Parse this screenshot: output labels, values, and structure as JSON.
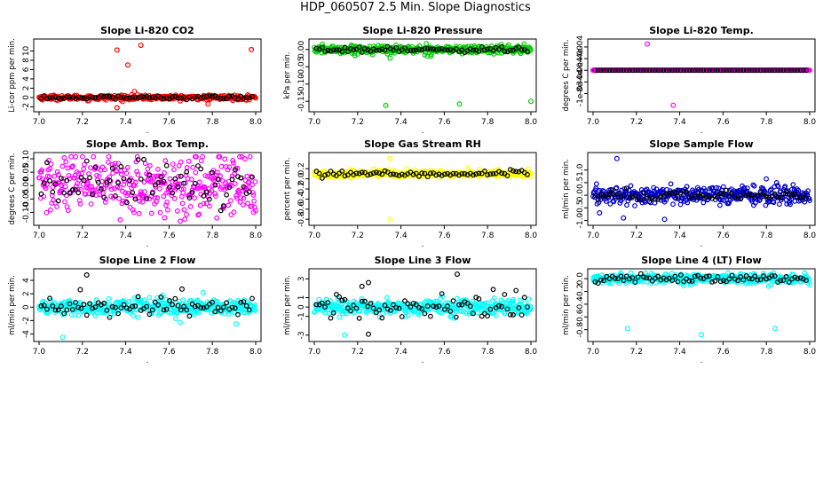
{
  "title": "HDP_060507  2.5 Min. Slope Diagnostics",
  "chart_data": [
    {
      "type": "scatter",
      "title": "Slope Li-820 CO2",
      "ylabel": "Li-cor ppm per min.",
      "color": "#ff0000",
      "xlim": [
        7.0,
        8.0
      ],
      "xticks": [
        "7.0",
        "7.2",
        "7.4",
        "7.6",
        "7.8",
        "8.0"
      ],
      "ylim": [
        -2.3,
        11.8
      ],
      "yticks": [
        {
          "v": -2,
          "label": "-2"
        },
        {
          "v": 0,
          "label": "0"
        },
        {
          "v": 2,
          "label": "2"
        },
        {
          "v": 4,
          "label": "4"
        },
        {
          "v": 6,
          "label": "6"
        },
        {
          "v": 8,
          "label": "8"
        },
        {
          "v": 10,
          "label": "10"
        }
      ],
      "series_params": {
        "center": 0,
        "spread": 0.25,
        "black_spread": 0.2
      },
      "outliers": [
        {
          "x": 7.36,
          "y": 10.2
        },
        {
          "x": 7.47,
          "y": 11.2
        },
        {
          "x": 7.41,
          "y": 7.0
        },
        {
          "x": 7.98,
          "y": 10.3
        },
        {
          "x": 7.44,
          "y": 1.3
        },
        {
          "x": 7.36,
          "y": -2.2
        },
        {
          "x": 7.78,
          "y": -1.4
        }
      ]
    },
    {
      "type": "scatter",
      "title": "Slope Li-820 Pressure",
      "ylabel": "kPa per min.",
      "color": "#00cc00",
      "xlim": [
        7.0,
        8.0
      ],
      "xticks": [
        "7.0",
        "7.2",
        "7.4",
        "7.6",
        "7.8",
        "8.0"
      ],
      "ylim": [
        -0.17,
        0.02
      ],
      "yticks": [
        {
          "v": 0.0,
          "label": "0.00"
        },
        {
          "v": -0.05,
          "label": "-0.05"
        },
        {
          "v": -0.1,
          "label": "-0.10"
        },
        {
          "v": -0.15,
          "label": "-0.15"
        }
      ],
      "series_params": {
        "center": 0.0,
        "spread": 0.006,
        "black_spread": 0.004
      },
      "outliers": [
        {
          "x": 7.33,
          "y": -0.162
        },
        {
          "x": 7.67,
          "y": -0.158
        },
        {
          "x": 8.0,
          "y": -0.15
        },
        {
          "x": 7.35,
          "y": -0.025
        }
      ]
    },
    {
      "type": "scatter",
      "title": "Slope Li-820 Temp.",
      "ylabel": "degrees C per min.",
      "color": "#ff00ff",
      "xlim": [
        7.0,
        8.0
      ],
      "xticks": [
        "7.0",
        "7.2",
        "7.4",
        "7.6",
        "7.8",
        "8.0"
      ],
      "ylim": [
        -0.0017,
        0.00055
      ],
      "yticks": [
        {
          "v": 0.0004,
          "label": "4e-04"
        },
        {
          "v": 0.0,
          "label": "0e+00"
        },
        {
          "v": -0.0004,
          "label": "-4e-04"
        },
        {
          "v": -0.0008,
          "label": "-8e-04"
        },
        {
          "v": -0.0012,
          "label": "-1e-03"
        }
      ],
      "series_params": {
        "center": -0.0004,
        "spread": 0.0,
        "black_spread": 0.0
      },
      "outliers": [
        {
          "x": 7.25,
          "y": 0.0005
        },
        {
          "x": 7.37,
          "y": -0.0016
        },
        {
          "x": 7.0,
          "y": -0.0004
        }
      ]
    },
    {
      "type": "scatter",
      "title": "Slope Amb. Box Temp.",
      "ylabel": "degrees C per min.",
      "color": "#ff00ff",
      "xlim": [
        7.0,
        8.0
      ],
      "xticks": [
        "7.0",
        "7.2",
        "7.4",
        "7.6",
        "7.8",
        "8.0"
      ],
      "ylim": [
        -0.135,
        0.11
      ],
      "yticks": [
        {
          "v": 0.1,
          "label": "0.10"
        },
        {
          "v": 0.05,
          "label": "0.05"
        },
        {
          "v": 0.0,
          "label": "0.00"
        },
        {
          "v": -0.05,
          "label": "-0.05"
        },
        {
          "v": -0.1,
          "label": "-0.10"
        }
      ],
      "series_params": {
        "center": 0.0,
        "spread": 0.055,
        "black_spread": 0.04
      },
      "outliers": [
        {
          "x": 7.95,
          "y": 0.1
        },
        {
          "x": 7.99,
          "y": -0.1
        },
        {
          "x": 7.58,
          "y": -0.12
        }
      ]
    },
    {
      "type": "scatter",
      "title": "Slope Gas Stream RH",
      "ylabel": "percent per min.",
      "color": "#ffff00",
      "xlim": [
        7.0,
        8.0
      ],
      "xticks": [
        "7.0",
        "7.2",
        "7.4",
        "7.6",
        "7.8",
        "8.0"
      ],
      "ylim": [
        -0.85,
        0.45
      ],
      "yticks": [
        {
          "v": 0.2,
          "label": "0.2"
        },
        {
          "v": 0.0,
          "label": "0.0"
        },
        {
          "v": -0.2,
          "label": "-0.2"
        },
        {
          "v": -0.4,
          "label": "-0.4"
        },
        {
          "v": -0.6,
          "label": "-0.6"
        },
        {
          "v": -0.8,
          "label": "-0.8"
        }
      ],
      "series_params": {
        "center": 0.1,
        "spread": 0.035,
        "black_spread": 0.03
      },
      "outliers": [
        {
          "x": 7.35,
          "y": 0.4
        },
        {
          "x": 7.35,
          "y": -0.8
        }
      ]
    },
    {
      "type": "scatter",
      "title": "Slope Sample Flow",
      "ylabel": "ml/min per min.",
      "color": "#0000cc",
      "xlim": [
        7.0,
        8.0
      ],
      "xticks": [
        "7.0",
        "7.2",
        "7.4",
        "7.6",
        "7.8",
        "8.0"
      ],
      "ylim": [
        -1.05,
        1.55
      ],
      "yticks": [
        {
          "v": 1.0,
          "label": "1.0"
        },
        {
          "v": 0.5,
          "label": "0.5"
        },
        {
          "v": 0.0,
          "label": "0.0"
        },
        {
          "v": -0.5,
          "label": "-0.5"
        },
        {
          "v": -1.0,
          "label": "-1.0"
        }
      ],
      "series_params": {
        "center": 0.0,
        "spread": 0.18,
        "black_spread": 0.1
      },
      "outliers": [
        {
          "x": 7.11,
          "y": 1.45
        },
        {
          "x": 7.03,
          "y": -0.7
        },
        {
          "x": 7.14,
          "y": -0.9
        },
        {
          "x": 7.33,
          "y": -0.95
        }
      ]
    },
    {
      "type": "scatter",
      "title": "Slope Line 2 Flow",
      "ylabel": "ml/min per min.",
      "color": "#00ffff",
      "xlim": [
        7.0,
        8.0
      ],
      "xticks": [
        "7.0",
        "7.2",
        "7.4",
        "7.6",
        "7.8",
        "8.0"
      ],
      "ylim": [
        -4.6,
        5.2
      ],
      "yticks": [
        {
          "v": -4,
          "label": "-4"
        },
        {
          "v": -2,
          "label": "-2"
        },
        {
          "v": 0,
          "label": "0"
        },
        {
          "v": 2,
          "label": "2"
        },
        {
          "v": 4,
          "label": "4"
        }
      ],
      "series_params": {
        "center": 0.0,
        "spread": 0.55,
        "black_spread": 0.6
      },
      "outliers": [
        {
          "x": 7.22,
          "y": 4.8
        },
        {
          "x": 7.11,
          "y": -4.5
        },
        {
          "x": 7.19,
          "y": 2.6
        },
        {
          "x": 7.66,
          "y": 2.7
        },
        {
          "x": 7.91,
          "y": -2.5
        },
        {
          "x": 7.33,
          "y": -1.2
        }
      ]
    },
    {
      "type": "scatter",
      "title": "Slope Line 3 Flow",
      "ylabel": "ml/min per min.",
      "color": "#00ffff",
      "xlim": [
        7.0,
        8.0
      ],
      "xticks": [
        "7.0",
        "7.2",
        "7.4",
        "7.6",
        "7.8",
        "8.0"
      ],
      "ylim": [
        -3.3,
        3.7
      ],
      "yticks": [
        {
          "v": -3,
          "label": "-3"
        },
        {
          "v": -1,
          "label": "-1"
        },
        {
          "v": 0,
          "label": "0"
        },
        {
          "v": 1,
          "label": "1"
        },
        {
          "v": 3,
          "label": "3"
        }
      ],
      "series_params": {
        "center": 0.0,
        "spread": 0.4,
        "black_spread": 0.7
      },
      "outliers": [
        {
          "x": 7.25,
          "y": -2.9
        },
        {
          "x": 7.14,
          "y": -3.0
        },
        {
          "x": 7.66,
          "y": 3.5
        },
        {
          "x": 7.25,
          "y": 2.6
        },
        {
          "x": 7.22,
          "y": 2.2
        }
      ]
    },
    {
      "type": "scatter",
      "title": "Slope Line 4 (LT) Flow",
      "ylabel": "ml/min per min.",
      "color": "#00ffff",
      "xlim": [
        7.0,
        8.0
      ],
      "xticks": [
        "7.0",
        "7.2",
        "7.4",
        "7.6",
        "7.8",
        "8.0"
      ],
      "ylim": [
        -0.93,
        0.1
      ],
      "yticks": [
        {
          "v": 0.0,
          "label": "0.0"
        },
        {
          "v": -0.2,
          "label": "-0.2"
        },
        {
          "v": -0.4,
          "label": "-0.4"
        },
        {
          "v": -0.6,
          "label": "-0.6"
        },
        {
          "v": -0.8,
          "label": "-0.8"
        }
      ],
      "series_params": {
        "center": 0.0,
        "spread": 0.04,
        "black_spread": 0.03
      },
      "outliers": [
        {
          "x": 7.16,
          "y": -0.78
        },
        {
          "x": 7.5,
          "y": -0.88
        },
        {
          "x": 7.84,
          "y": -0.78
        }
      ]
    }
  ]
}
